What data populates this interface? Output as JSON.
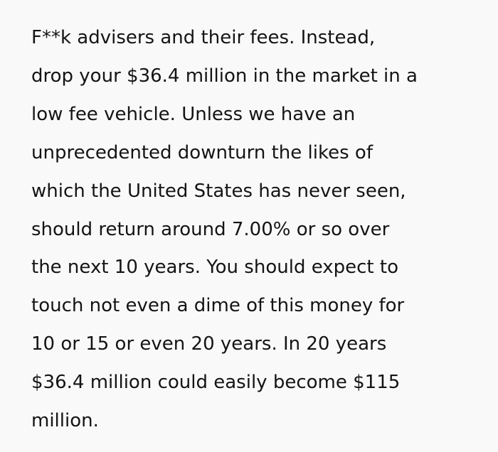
{
  "paragraph": {
    "lines": [
      "F**k advisers and their fees. Instead,",
      "drop your $36.4 million in the market in a",
      "low fee vehicle. Unless we have an",
      "unprecedented downturn the likes of",
      "which the United States has never seen,",
      "should return around 7.00% or so over",
      "the next 10 years. You should expect to",
      "touch not even a dime of this money for",
      "10 or 15 or even 20 years. In 20 years",
      "$36.4 million could easily become $115",
      "million."
    ]
  }
}
